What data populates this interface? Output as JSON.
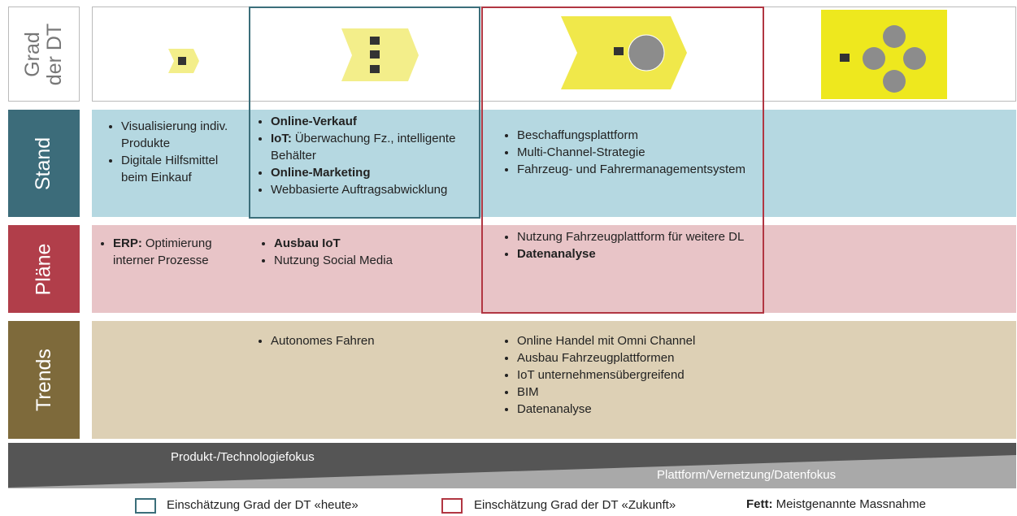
{
  "rows": [
    {
      "label": "Grad der DT"
    },
    {
      "label": "Stand",
      "cells": [
        [
          {
            "text": "Visualisierung indiv. Produkte"
          },
          {
            "text": "Digitale Hilfsmittel beim Einkauf"
          }
        ],
        [
          {
            "bold": "Online-Verkauf"
          },
          {
            "bold": "IoT:",
            "text": "Überwachung Fz., intelligente Behälter"
          },
          {
            "bold": "Online-Marketing"
          },
          {
            "text": "Webbasierte Auftragsabwicklung"
          }
        ],
        [
          {
            "text": "Beschaffungsplattform"
          },
          {
            "text": "Multi-Channel-Strategie"
          },
          {
            "text": "Fahrzeug- und Fahrermanagementsystem"
          }
        ],
        []
      ]
    },
    {
      "label": "Pläne",
      "cells": [
        [
          {
            "bold": "ERP:",
            "text": "Optimierung interner Prozesse"
          }
        ],
        [
          {
            "bold": "Ausbau IoT"
          },
          {
            "text": "Nutzung Social Media"
          }
        ],
        [
          {
            "text": "Nutzung Fahrzeugplattform für weitere DL"
          },
          {
            "bold": "Datenanalyse"
          }
        ],
        []
      ]
    },
    {
      "label": "Trends",
      "cells": [
        [],
        [
          {
            "text": "Autonomes Fahren"
          }
        ],
        [
          {
            "text": "Online Handel mit Omni Channel"
          },
          {
            "text": "Ausbau Fahrzeugplattformen"
          },
          {
            "text": "IoT unternehmensübergreifend"
          },
          {
            "text": "BIM"
          },
          {
            "text": "Datenanalyse"
          }
        ],
        []
      ]
    }
  ],
  "wedge": {
    "left": "Produkt-/Technologiefokus",
    "right": "Plattform/Vernetzung/Datenfokus"
  },
  "legend": {
    "today": "Einschätzung Grad der DT «heute»",
    "future": "Einschätzung Grad der DT «Zukunft»",
    "bold": "Fett:",
    "note": "Meistgenannte Massnahme"
  }
}
